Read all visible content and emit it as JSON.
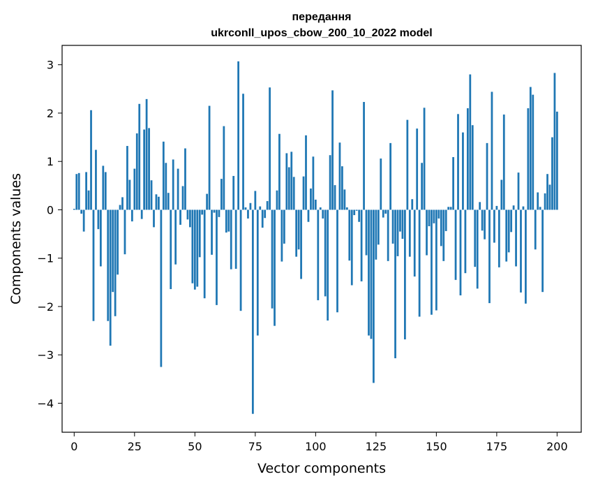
{
  "chart_data": {
    "type": "bar",
    "title": "передання",
    "subtitle": "ukrconll_upos_cbow_200_10_2022 model",
    "xlabel": "Vector components",
    "ylabel": "Components values",
    "xlim": [
      -5,
      210
    ],
    "ylim": [
      -4.6,
      3.4
    ],
    "xticks": [
      0,
      25,
      50,
      75,
      100,
      125,
      150,
      175,
      200
    ],
    "yticks": [
      3,
      2,
      1,
      0,
      -1,
      -2,
      -3,
      -4
    ],
    "xtick_labels": [
      "0",
      "25",
      "50",
      "75",
      "100",
      "125",
      "150",
      "175",
      "200"
    ],
    "ytick_labels": [
      "3",
      "2",
      "1",
      "0",
      "−1",
      "−2",
      "−3",
      "−4"
    ],
    "color": "#1f77b4",
    "values": [
      0.02,
      0.74,
      0.76,
      -0.08,
      -0.45,
      0.78,
      0.4,
      2.06,
      -2.3,
      1.24,
      -0.4,
      -1.17,
      0.91,
      0.78,
      -2.3,
      -2.81,
      -1.7,
      -2.2,
      -1.34,
      0.1,
      0.26,
      -0.92,
      1.32,
      0.62,
      -0.24,
      0.85,
      1.58,
      2.19,
      -0.19,
      1.66,
      2.29,
      1.69,
      0.61,
      -0.36,
      0.32,
      0.27,
      -3.25,
      1.41,
      0.97,
      0.35,
      -1.64,
      1.04,
      -1.13,
      0.85,
      -0.31,
      0.49,
      1.27,
      -0.2,
      -0.36,
      -1.52,
      -1.65,
      -1.59,
      -0.98,
      -0.1,
      -1.83,
      0.33,
      2.15,
      -0.93,
      -0.06,
      -1.97,
      -0.15,
      0.64,
      1.73,
      -0.47,
      -0.45,
      -1.23,
      0.7,
      -1.22,
      3.07,
      -2.09,
      2.4,
      0.05,
      -0.18,
      0.14,
      -4.22,
      0.39,
      -2.6,
      0.07,
      -0.37,
      -0.17,
      0.18,
      2.53,
      -2.04,
      -2.4,
      0.4,
      1.57,
      -1.07,
      -0.7,
      1.17,
      0.88,
      1.2,
      0.68,
      -0.97,
      -0.82,
      -1.43,
      0.69,
      1.54,
      -0.25,
      0.44,
      1.1,
      0.21,
      -1.87,
      0.05,
      -0.18,
      -1.79,
      -2.29,
      1.13,
      2.47,
      0.51,
      -2.12,
      1.39,
      0.9,
      0.42,
      0.05,
      -1.05,
      -1.56,
      -0.11,
      -0.02,
      -0.25,
      -1.48,
      2.23,
      -0.94,
      -2.6,
      -2.67,
      -3.58,
      -1.03,
      -0.72,
      1.06,
      -0.16,
      -0.08,
      -1.06,
      1.38,
      -0.7,
      -3.07,
      -0.96,
      -0.45,
      -0.6,
      -2.68,
      1.86,
      -0.97,
      0.22,
      -1.38,
      1.68,
      -2.21,
      0.97,
      2.11,
      -0.94,
      -0.34,
      -2.17,
      -0.28,
      -2.08,
      -0.18,
      -0.75,
      -1.06,
      -0.44,
      0.06,
      0.06,
      1.09,
      -1.45,
      1.98,
      -1.77,
      1.6,
      -1.31,
      2.1,
      2.8,
      1.75,
      -1.18,
      -1.63,
      0.16,
      -0.43,
      -0.61,
      1.38,
      -1.93,
      2.44,
      -0.68,
      0.08,
      -1.19,
      0.62,
      1.97,
      -1.07,
      -0.88,
      -0.46,
      0.09,
      -1.17,
      0.77,
      -1.71,
      0.07,
      -1.94,
      2.1,
      2.54,
      2.38,
      -0.82,
      0.36,
      0.06,
      -1.7,
      0.34,
      0.74,
      0.52,
      1.5,
      2.83,
      2.03
    ]
  }
}
